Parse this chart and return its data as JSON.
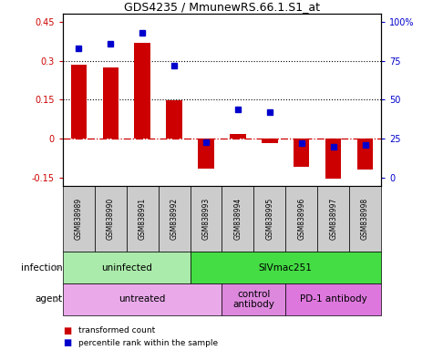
{
  "title": "GDS4235 / MmunewRS.66.1.S1_at",
  "samples": [
    "GSM838989",
    "GSM838990",
    "GSM838991",
    "GSM838992",
    "GSM838993",
    "GSM838994",
    "GSM838995",
    "GSM838996",
    "GSM838997",
    "GSM838998"
  ],
  "transformed_count": [
    0.285,
    0.275,
    0.37,
    0.147,
    -0.115,
    0.018,
    -0.018,
    -0.108,
    -0.155,
    -0.12
  ],
  "percentile_rank": [
    0.83,
    0.86,
    0.93,
    0.72,
    0.23,
    0.44,
    0.42,
    0.22,
    0.2,
    0.21
  ],
  "ylim": [
    -0.18,
    0.48
  ],
  "y_left_ticks": [
    -0.15,
    0,
    0.15,
    0.3,
    0.45
  ],
  "y_right_ticks": [
    0,
    25,
    50,
    75,
    100
  ],
  "hlines": [
    0.3,
    0.15
  ],
  "bar_color": "#cc0000",
  "dot_color": "#0000cc",
  "zero_line_color": "#cc0000",
  "sample_bg_color": "#cccccc",
  "infection_groups": [
    {
      "label": "uninfected",
      "start": 0,
      "end": 4,
      "color": "#aaeaaa"
    },
    {
      "label": "SIVmac251",
      "start": 4,
      "end": 10,
      "color": "#44dd44"
    }
  ],
  "agent_groups": [
    {
      "label": "untreated",
      "start": 0,
      "end": 5,
      "color": "#eaaaea"
    },
    {
      "label": "control\nantibody",
      "start": 5,
      "end": 7,
      "color": "#dd88dd"
    },
    {
      "label": "PD-1 antibody",
      "start": 7,
      "end": 10,
      "color": "#dd77dd"
    }
  ],
  "legend_items": [
    {
      "label": "transformed count",
      "color": "#cc0000"
    },
    {
      "label": "percentile rank within the sample",
      "color": "#0000cc"
    }
  ],
  "infection_label": "infection",
  "agent_label": "agent"
}
